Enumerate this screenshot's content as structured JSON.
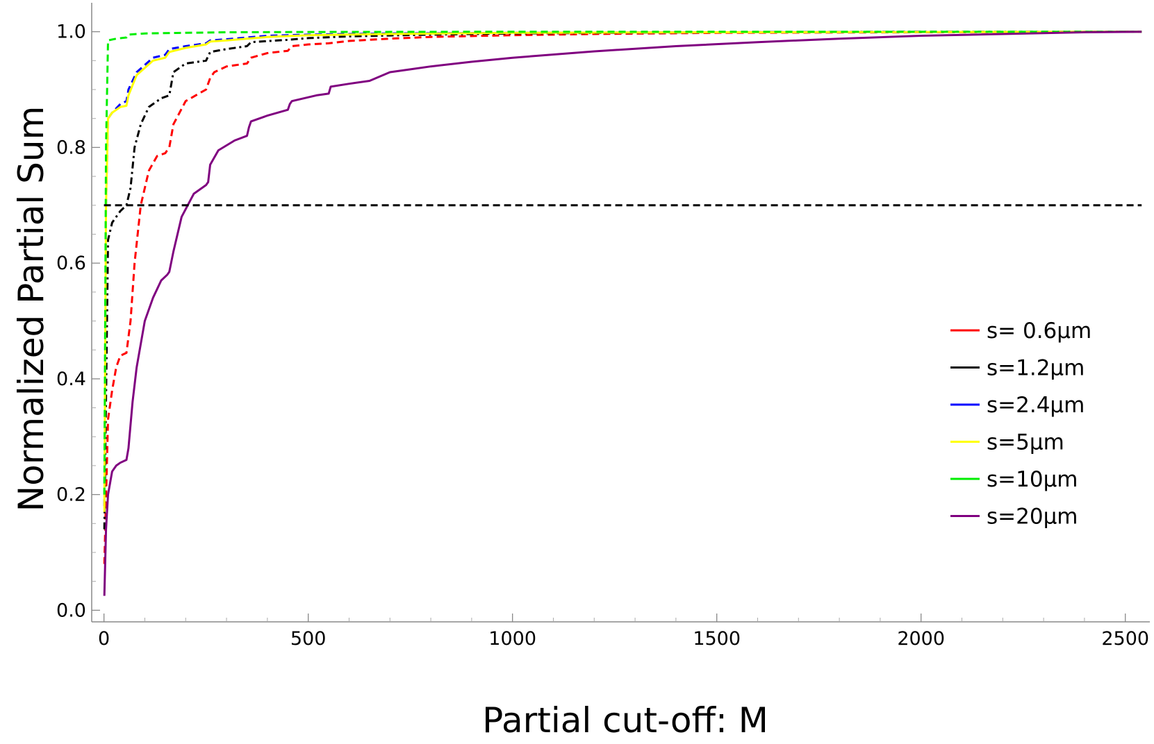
{
  "chart_data": {
    "type": "line",
    "title": "",
    "xlabel": "Partial cut-off: M",
    "ylabel": "Normalized Partial Sum",
    "xlim": [
      -30,
      2560
    ],
    "ylim": [
      -0.02,
      1.05
    ],
    "xticks": [
      0,
      500,
      1000,
      1500,
      2000,
      2500
    ],
    "xtick_labels": [
      "0",
      "500",
      "1000",
      "1500",
      "2000",
      "2500"
    ],
    "yticks": [
      0.0,
      0.2,
      0.4,
      0.6,
      0.8,
      1.0
    ],
    "ytick_labels": [
      "0.0",
      "0.2",
      "0.4",
      "0.6",
      "0.8",
      "1.0"
    ],
    "grid": false,
    "legend_position": "right-middle",
    "series": [
      {
        "name": "s= 0.6μm",
        "color": "#ff0000",
        "dash": "dashed",
        "x": [
          1,
          10,
          20,
          30,
          40,
          55,
          65,
          75,
          90,
          110,
          130,
          150,
          160,
          170,
          200,
          250,
          260,
          270,
          300,
          350,
          360,
          400,
          450,
          460,
          500,
          550,
          600,
          700,
          800,
          1000,
          1200,
          1500,
          2000,
          2540
        ],
        "y": [
          0.08,
          0.33,
          0.38,
          0.42,
          0.44,
          0.445,
          0.5,
          0.6,
          0.7,
          0.76,
          0.785,
          0.79,
          0.8,
          0.84,
          0.88,
          0.9,
          0.92,
          0.93,
          0.94,
          0.945,
          0.955,
          0.963,
          0.967,
          0.975,
          0.978,
          0.98,
          0.984,
          0.988,
          0.991,
          0.994,
          0.996,
          0.998,
          0.999,
          1.0
        ]
      },
      {
        "name": "s=1.2μm",
        "color": "#000000",
        "dash": "dash-dot",
        "x": [
          1,
          10,
          20,
          40,
          55,
          65,
          75,
          90,
          110,
          140,
          160,
          170,
          200,
          250,
          260,
          300,
          350,
          360,
          450,
          500,
          600,
          800,
          1000,
          1500,
          2000,
          2540
        ],
        "y": [
          0.14,
          0.64,
          0.67,
          0.69,
          0.7,
          0.73,
          0.8,
          0.84,
          0.87,
          0.885,
          0.89,
          0.93,
          0.945,
          0.95,
          0.965,
          0.97,
          0.975,
          0.982,
          0.986,
          0.989,
          0.992,
          0.995,
          0.997,
          0.999,
          1.0,
          1.0
        ]
      },
      {
        "name": "s=2.4μm",
        "color": "#0000ff",
        "dash": "dashed",
        "x": [
          1,
          5,
          10,
          20,
          40,
          55,
          60,
          80,
          120,
          150,
          160,
          200,
          250,
          260,
          300,
          350,
          400,
          500,
          700,
          1000,
          1500,
          2540
        ],
        "y": [
          0.18,
          0.7,
          0.85,
          0.86,
          0.875,
          0.88,
          0.9,
          0.93,
          0.955,
          0.96,
          0.97,
          0.975,
          0.98,
          0.985,
          0.987,
          0.99,
          0.993,
          0.995,
          0.997,
          0.998,
          0.999,
          1.0
        ]
      },
      {
        "name": "s=5μm",
        "color": "#ffff00",
        "dash": "solid",
        "x": [
          1,
          5,
          10,
          20,
          40,
          55,
          60,
          80,
          120,
          150,
          160,
          200,
          250,
          260,
          300,
          350,
          400,
          500,
          700,
          1000,
          1500,
          2540
        ],
        "y": [
          0.17,
          0.7,
          0.85,
          0.86,
          0.87,
          0.872,
          0.89,
          0.925,
          0.95,
          0.955,
          0.965,
          0.972,
          0.978,
          0.983,
          0.985,
          0.988,
          0.991,
          0.994,
          0.996,
          0.998,
          0.999,
          1.0
        ]
      },
      {
        "name": "s=10μm",
        "color": "#00ee00",
        "dash": "dashed",
        "x": [
          1,
          5,
          10,
          30,
          55,
          60,
          100,
          200,
          300,
          500,
          1000,
          2540
        ],
        "y": [
          0.2,
          0.8,
          0.985,
          0.988,
          0.99,
          0.995,
          0.997,
          0.998,
          0.999,
          0.9995,
          1.0,
          1.0
        ]
      },
      {
        "name": "s=20μm",
        "color": "#800080",
        "dash": "solid",
        "x": [
          1,
          5,
          10,
          20,
          30,
          40,
          55,
          60,
          70,
          80,
          100,
          120,
          140,
          155,
          160,
          170,
          190,
          220,
          250,
          255,
          260,
          280,
          320,
          350,
          355,
          360,
          400,
          450,
          455,
          460,
          520,
          550,
          555,
          600,
          650,
          700,
          750,
          800,
          900,
          1000,
          1200,
          1400,
          1600,
          1800,
          2000,
          2200,
          2400,
          2540
        ],
        "y": [
          0.025,
          0.14,
          0.2,
          0.24,
          0.25,
          0.255,
          0.26,
          0.28,
          0.36,
          0.42,
          0.5,
          0.54,
          0.57,
          0.58,
          0.585,
          0.62,
          0.68,
          0.72,
          0.735,
          0.74,
          0.77,
          0.795,
          0.812,
          0.82,
          0.835,
          0.845,
          0.855,
          0.865,
          0.875,
          0.88,
          0.89,
          0.893,
          0.905,
          0.91,
          0.915,
          0.93,
          0.935,
          0.94,
          0.948,
          0.955,
          0.966,
          0.975,
          0.982,
          0.988,
          0.993,
          0.996,
          0.999,
          1.0
        ]
      },
      {
        "name": "",
        "color": "#000000",
        "dash": "dashed",
        "x": [
          0,
          2540
        ],
        "y": [
          0.7,
          0.7
        ]
      }
    ]
  }
}
